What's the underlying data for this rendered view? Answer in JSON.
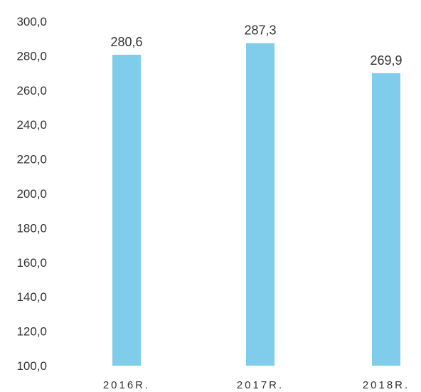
{
  "chart_data": {
    "type": "bar",
    "categories": [
      "2016R.",
      "2017R.",
      "2018R."
    ],
    "values": [
      280.6,
      287.3,
      269.9
    ],
    "value_labels": [
      "280,6",
      "287,3",
      "269,9"
    ],
    "y_ticks": [
      100,
      120,
      140,
      160,
      180,
      200,
      220,
      240,
      260,
      280,
      300
    ],
    "y_tick_labels": [
      "100,0",
      "120,0",
      "140,0",
      "160,0",
      "180,0",
      "200,0",
      "220,0",
      "240,0",
      "260,0",
      "280,0",
      "300,0"
    ],
    "ylim": [
      100,
      300
    ],
    "grid": false,
    "legend": "none",
    "bar_color": "#7fcdea"
  }
}
